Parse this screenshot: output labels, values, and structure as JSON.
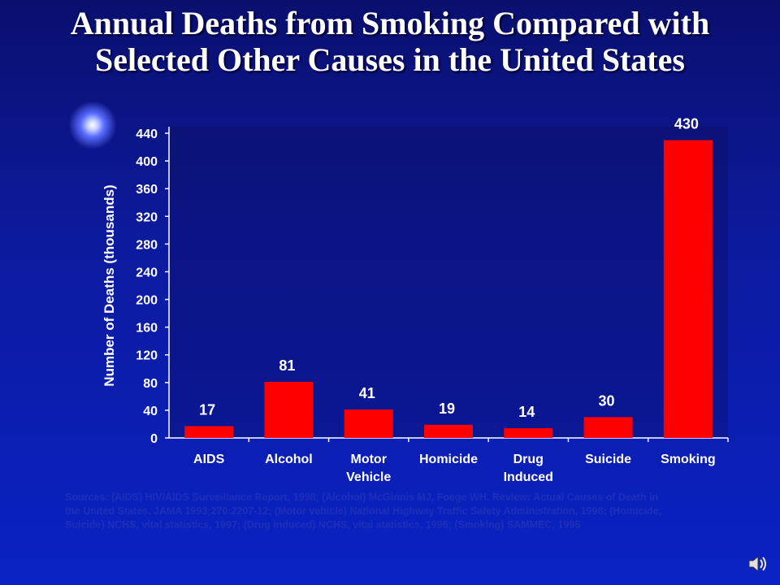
{
  "slide": {
    "title": "Annual Deaths from Smoking Compared with Selected Other Causes in the United States",
    "source": "Sources: (AIDS) HIV/AIDS Surveillance Report, 1998; (Alcohol) McGinnis MJ, Foege WH. Review: Actual Causes of Death in the United States. JAMA 1993;270:2207-12; (Motor vehicle) National Highway Traffic Safety Administration, 1998; (Homicide, Suicide) NCHS, vital statistics, 1997; (Drug induced) NCHS, vital statistics, 1996; (Smoking) SAMMEC, 1995"
  },
  "colors": {
    "bar": "#ff0000",
    "text": "#ffffff",
    "axis": "#ffffff",
    "background_top": "#0a0f6e",
    "background_bottom": "#0a22c4"
  },
  "icons": {
    "speaker": "speaker-icon",
    "glow": "light-glow-icon"
  },
  "chart_data": {
    "type": "bar",
    "title": "Annual Deaths from Smoking Compared with Selected Other Causes in the United States",
    "ylabel": "Number of Deaths (thousands)",
    "xlabel": "",
    "ylim": [
      0,
      440
    ],
    "yticks": [
      0,
      40,
      80,
      120,
      160,
      200,
      240,
      280,
      320,
      360,
      400,
      440
    ],
    "grid": false,
    "legend": "none",
    "categories": [
      [
        "AIDS"
      ],
      [
        "Alcohol"
      ],
      [
        "Motor",
        "Vehicle"
      ],
      [
        "Homicide"
      ],
      [
        "Drug",
        "Induced"
      ],
      [
        "Suicide"
      ],
      [
        "Smoking"
      ]
    ],
    "values": [
      17,
      81,
      41,
      19,
      14,
      30,
      430
    ]
  }
}
